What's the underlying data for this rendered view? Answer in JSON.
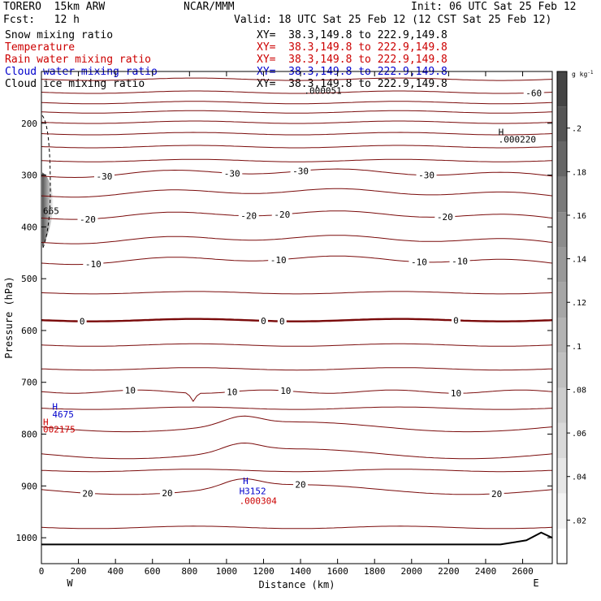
{
  "header": {
    "model": "TORERO  15km ARW",
    "org": "NCAR/MMM",
    "init": "Init: 06 UTC Sat 25 Feb 12",
    "fcst": "Fcst:   12 h",
    "valid": "Valid: 18 UTC Sat 25 Feb 12 (12 CST Sat 25 Feb 12)"
  },
  "legend": [
    {
      "label": "Snow mixing ratio",
      "xy": "XY=  38.3,149.8 to 222.9,149.8",
      "color": "#000000"
    },
    {
      "label": "Temperature",
      "xy": "XY=  38.3,149.8 to 222.9,149.8",
      "color": "#cc0000"
    },
    {
      "label": "Rain water mixing ratio",
      "xy": "XY=  38.3,149.8 to 222.9,149.8",
      "color": "#cc0000"
    },
    {
      "label": "Cloud water mixing ratio",
      "xy": "XY=  38.3,149.8 to 222.9,149.8",
      "color": "#0000cc"
    },
    {
      "label": "Cloud ice mixing ratio",
      "xy": "XY=  38.3,149.8 to 222.9,149.8",
      "color": "#000000"
    }
  ],
  "chart_data": {
    "type": "contour",
    "xlabel": "Distance (km)",
    "ylabel": "Pressure (hPa)",
    "xlim": [
      0,
      2760
    ],
    "ylim": [
      1050,
      100
    ],
    "x_ticks": [
      0,
      200,
      400,
      600,
      800,
      1000,
      1200,
      1400,
      1600,
      1800,
      2000,
      2200,
      2400,
      2600
    ],
    "y_ticks": [
      200,
      300,
      400,
      500,
      600,
      700,
      800,
      900,
      1000
    ],
    "x_end_labels": {
      "left": "W",
      "right": "E"
    },
    "colorbar": {
      "unit": "g kg",
      "unit_exp": "-1",
      "ticks": [
        ".02",
        ".04",
        ".06",
        ".08",
        ".1",
        ".12",
        ".14",
        ".16",
        ".18",
        ".2"
      ],
      "colors": [
        "#ffffff",
        "#f3f3f3",
        "#e6e6e6",
        "#d9d9d9",
        "#cccccc",
        "#bfbfbf",
        "#b3b3b3",
        "#a6a6a6",
        "#999999",
        "#8c8c8c",
        "#7a7a7a",
        "#666666",
        "#555555",
        "#444444"
      ]
    },
    "temperature_lines": [
      {
        "p": 115,
        "shape": "flat",
        "labels": []
      },
      {
        "p": 140,
        "shape": "flat",
        "labels": [
          {
            "x": 2660,
            "text": "-60"
          }
        ]
      },
      {
        "p": 160,
        "shape": "flat",
        "labels": []
      },
      {
        "p": 178,
        "shape": "flat",
        "labels": []
      },
      {
        "p": 198,
        "shape": "flat",
        "labels": []
      },
      {
        "p": 220,
        "shape": "flat",
        "labels": []
      },
      {
        "p": 245,
        "shape": "flat",
        "labels": []
      },
      {
        "p": 272,
        "shape": "flat",
        "labels": []
      },
      {
        "p": 302,
        "shape": "hump",
        "labels": [
          {
            "x": 340,
            "text": "-30"
          },
          {
            "x": 1030,
            "text": "-30"
          },
          {
            "x": 1400,
            "text": "-30"
          },
          {
            "x": 2080,
            "text": "-30"
          }
        ]
      },
      {
        "p": 340,
        "shape": "hump",
        "labels": []
      },
      {
        "p": 383,
        "shape": "hump",
        "labels": [
          {
            "x": 250,
            "text": "-20"
          },
          {
            "x": 1120,
            "text": "-20"
          },
          {
            "x": 1300,
            "text": "-20"
          },
          {
            "x": 2180,
            "text": "-20"
          }
        ]
      },
      {
        "p": 430,
        "shape": "hump",
        "labels": []
      },
      {
        "p": 470,
        "shape": "hump",
        "labels": [
          {
            "x": 280,
            "text": "-10"
          },
          {
            "x": 1280,
            "text": "-10"
          },
          {
            "x": 2040,
            "text": "-10"
          },
          {
            "x": 2260,
            "text": "-10"
          }
        ]
      },
      {
        "p": 527,
        "shape": "flat",
        "labels": []
      },
      {
        "p": 580,
        "shape": "flat",
        "bold": true,
        "labels": [
          {
            "x": 220,
            "text": "0"
          },
          {
            "x": 1200,
            "text": "0"
          },
          {
            "x": 1300,
            "text": "0"
          },
          {
            "x": 2240,
            "text": "0"
          }
        ]
      },
      {
        "p": 628,
        "shape": "flat",
        "labels": []
      },
      {
        "p": 674,
        "shape": "flat",
        "labels": []
      },
      {
        "p": 718,
        "shape": "dip",
        "labels": [
          {
            "x": 480,
            "text": "10"
          },
          {
            "x": 1030,
            "text": "10"
          },
          {
            "x": 1320,
            "text": "10"
          },
          {
            "x": 2240,
            "text": "10"
          }
        ]
      },
      {
        "p": 750,
        "shape": "flat",
        "labels": []
      },
      {
        "p": 786,
        "shape": "bump",
        "labels": []
      },
      {
        "p": 838,
        "shape": "bump",
        "labels": []
      },
      {
        "p": 870,
        "shape": "flat",
        "labels": []
      },
      {
        "p": 907,
        "shape": "bump",
        "labels": [
          {
            "x": 250,
            "text": "20"
          },
          {
            "x": 680,
            "text": "20"
          },
          {
            "x": 1400,
            "text": "20"
          },
          {
            "x": 2460,
            "text": "20"
          }
        ]
      },
      {
        "p": 980,
        "shape": "flat",
        "labels": []
      }
    ],
    "annotations": [
      {
        "x": 1410,
        "p": 143,
        "text": ".000051",
        "color": "#000000"
      },
      {
        "x": 2460,
        "p": 223,
        "text": "H",
        "color": "#000000"
      },
      {
        "x": 2460,
        "p": 237,
        "text": ".000220",
        "color": "#000000"
      },
      {
        "x": 0,
        "p": 375,
        "text": "665",
        "color": "#000000"
      },
      {
        "x": 50,
        "p": 753,
        "text": "H",
        "color": "#0000cc"
      },
      {
        "x": 50,
        "p": 768,
        "text": "4675",
        "color": "#0000cc"
      },
      {
        "x": 0,
        "p": 783,
        "text": "H",
        "color": "#cc0000"
      },
      {
        "x": 0,
        "p": 797,
        "text": "002175",
        "color": "#cc0000"
      },
      {
        "x": 1080,
        "p": 896,
        "text": "H",
        "color": "#0000cc"
      },
      {
        "x": 1060,
        "p": 916,
        "text": "H3152",
        "color": "#0000cc"
      },
      {
        "x": 1060,
        "p": 935,
        "text": ".000304",
        "color": "#cc0000"
      }
    ]
  }
}
